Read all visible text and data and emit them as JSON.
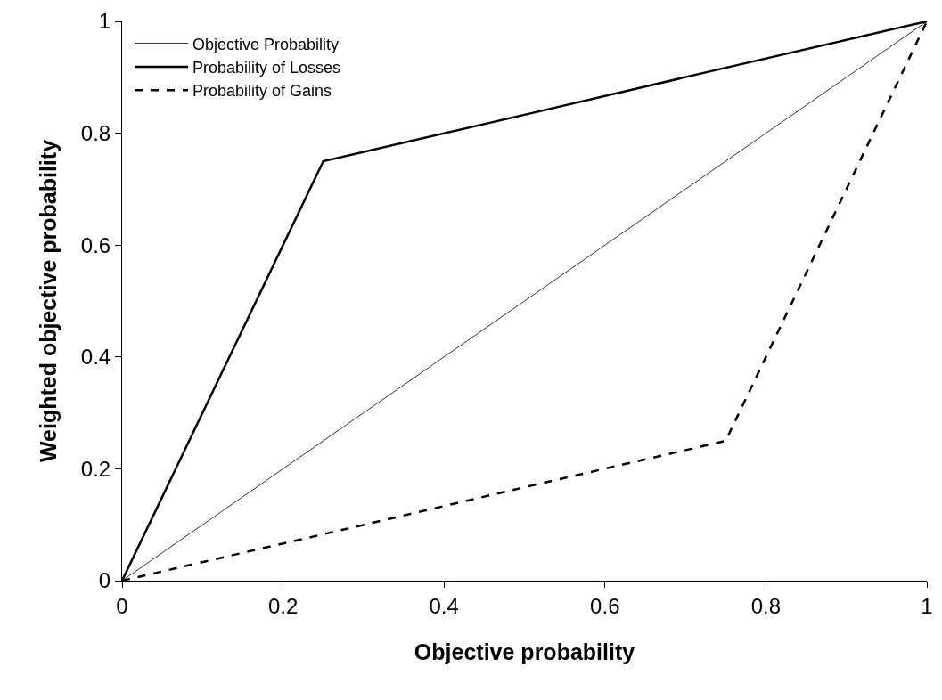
{
  "chart_data": {
    "type": "line",
    "xlabel": "Objective probability",
    "ylabel": "Weighted objective probability",
    "x": [
      0,
      0.25,
      0.5,
      0.75,
      1
    ],
    "series": [
      {
        "name": "Objective Probability",
        "color": "#000000",
        "line_style": "solid",
        "values": [
          0,
          0.25,
          0.5,
          0.75,
          1
        ]
      },
      {
        "name": "Probability of Losses",
        "color": "#000000",
        "line_style": "solid",
        "values": [
          0,
          0.75,
          0.833,
          0.917,
          1
        ]
      },
      {
        "name": "Probability of Gains",
        "color": "#000000",
        "line_style": "dashed",
        "values": [
          0,
          0.083,
          0.167,
          0.25,
          1
        ]
      }
    ],
    "xlim": [
      0,
      1
    ],
    "ylim": [
      0,
      1
    ],
    "xticks": [
      0,
      0.2,
      0.4,
      0.6,
      0.8,
      1
    ],
    "yticks": [
      0,
      0.2,
      0.4,
      0.6,
      0.8,
      1
    ],
    "grid": false,
    "legend": "top left",
    "marker": "none"
  }
}
